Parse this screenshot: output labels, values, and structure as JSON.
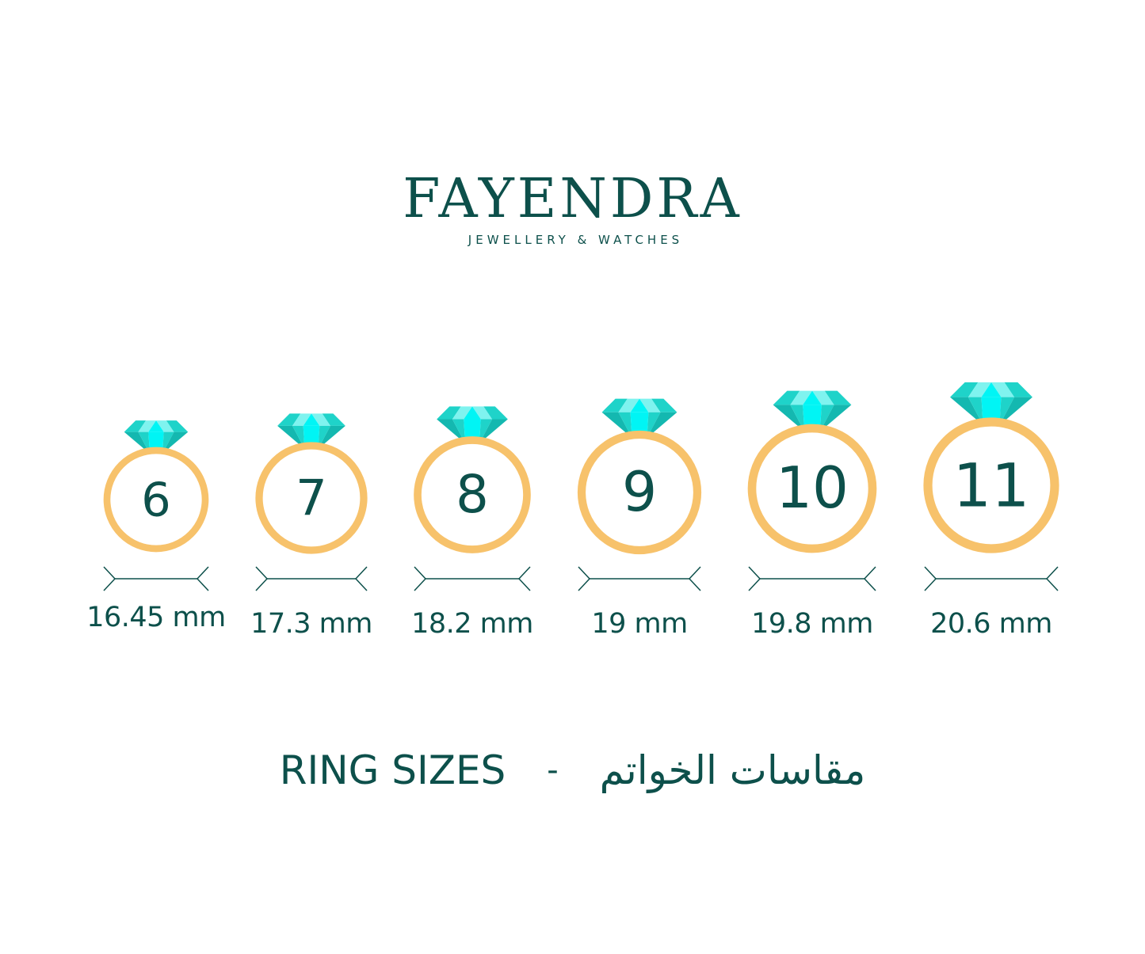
{
  "brand": {
    "name": "FAYENDRA",
    "tagline": "JEWELLERY & WATCHES"
  },
  "rings": [
    {
      "size": "6",
      "diameter": "16.45 mm"
    },
    {
      "size": "7",
      "diameter": "17.3 mm"
    },
    {
      "size": "8",
      "diameter": "18.2 mm"
    },
    {
      "size": "9",
      "diameter": "19 mm"
    },
    {
      "size": "10",
      "diameter": "19.8 mm"
    },
    {
      "size": "11",
      "diameter": "20.6 mm"
    }
  ],
  "footer": {
    "title_en": "RING SIZES",
    "separator": "-",
    "title_ar": "مقاسات الخواتم"
  },
  "colors": {
    "text": "#0d504b",
    "ring": "#f7c26b",
    "gem_dark": "#14b8b0",
    "gem_mid": "#1fd3c9",
    "gem_light": "#7ff3ef",
    "gem_bright": "#00f5f5"
  },
  "icons": {
    "ring": "diamond-ring-icon",
    "measure": "diameter-arrow-icon"
  }
}
